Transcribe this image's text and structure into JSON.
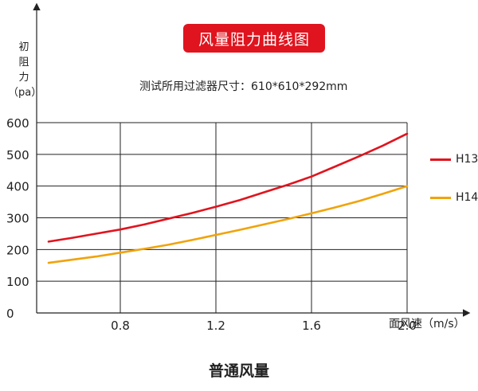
{
  "chart_data": {
    "type": "line",
    "title": "风量阻力曲线图",
    "subtitle": "测试所用过滤器尺寸：610*610*292mm",
    "ylabel_chars": [
      "初",
      "阻",
      "力"
    ],
    "ylabel_unit": "（pa）",
    "xlabel": "面风速（m/s）",
    "xlim": [
      0.45,
      2.0
    ],
    "ylim": [
      0,
      600
    ],
    "x_ticks": [
      "0.8",
      "1.2",
      "1.6",
      "2.0"
    ],
    "y_ticks": [
      "0",
      "100",
      "200",
      "300",
      "400",
      "500",
      "600"
    ],
    "grid": true,
    "legend_position": "right",
    "series": [
      {
        "name": "H13",
        "color": "#e0141e",
        "x": [
          0.5,
          0.6,
          0.7,
          0.8,
          0.9,
          1.0,
          1.1,
          1.2,
          1.3,
          1.4,
          1.5,
          1.6,
          1.7,
          1.8,
          1.9,
          2.0
        ],
        "y": [
          225,
          237,
          250,
          263,
          279,
          297,
          315,
          335,
          356,
          380,
          404,
          430,
          462,
          494,
          528,
          565
        ]
      },
      {
        "name": "H14",
        "color": "#f0a30a",
        "x": [
          0.5,
          0.6,
          0.7,
          0.8,
          0.9,
          1.0,
          1.1,
          1.2,
          1.3,
          1.4,
          1.5,
          1.6,
          1.7,
          1.8,
          1.9,
          2.0
        ],
        "y": [
          158,
          168,
          178,
          190,
          202,
          215,
          230,
          246,
          262,
          279,
          296,
          314,
          333,
          353,
          376,
          400
        ]
      }
    ]
  },
  "caption": "普通风量"
}
